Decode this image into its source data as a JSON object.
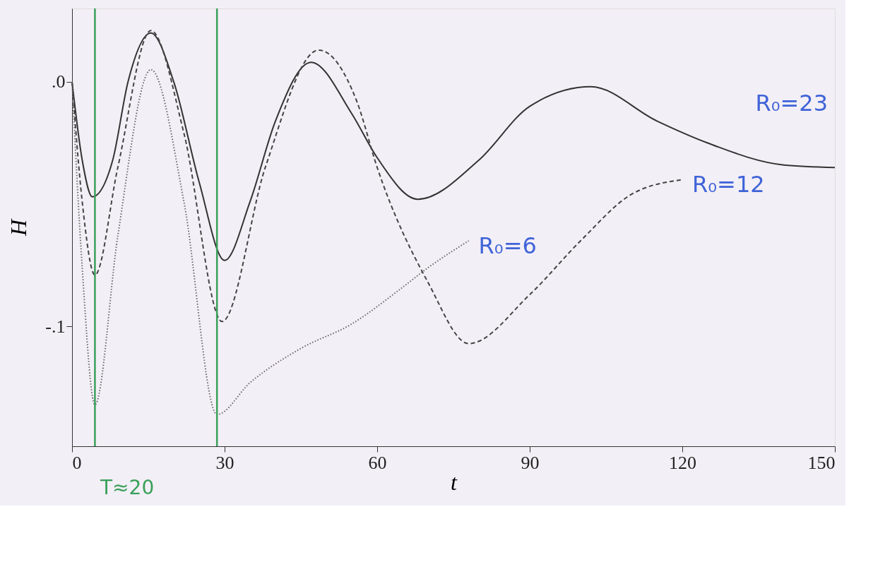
{
  "chart_data": {
    "type": "line",
    "xlabel": "t",
    "ylabel": "H",
    "xlim": [
      0,
      150
    ],
    "ylim": [
      -0.149,
      0.03
    ],
    "xticks": [
      0,
      30,
      60,
      90,
      120,
      150
    ],
    "yticks": [
      {
        "value": 0,
        "label": ".0"
      },
      {
        "value": -0.1,
        "label": "-.1"
      }
    ],
    "grid": false,
    "marker": "none",
    "series": [
      {
        "name": "R₀=23",
        "color": "#333333",
        "line_style": "solid",
        "x": [
          0,
          2,
          4,
          8,
          11,
          15.5,
          20,
          25,
          30,
          35,
          40,
          47,
          55,
          60,
          68,
          80,
          90,
          102,
          115,
          125,
          140,
          150
        ],
        "values": [
          0,
          -0.032,
          -0.047,
          -0.032,
          0.0,
          0.02,
          0.0,
          -0.041,
          -0.073,
          -0.049,
          -0.016,
          0.008,
          -0.013,
          -0.031,
          -0.048,
          -0.032,
          -0.01,
          -0.002,
          -0.016,
          -0.025,
          -0.034,
          -0.035
        ]
      },
      {
        "name": "R₀=12",
        "color": "#444444",
        "line_style": "dashed",
        "x": [
          0,
          2,
          4.5,
          9,
          15.5,
          22,
          29.5,
          38,
          48.5,
          56,
          60,
          70,
          78,
          90,
          100,
          110,
          120
        ],
        "values": [
          0,
          -0.049,
          -0.079,
          -0.035,
          0.021,
          -0.021,
          -0.098,
          -0.035,
          0.013,
          -0.008,
          -0.035,
          -0.082,
          -0.107,
          -0.087,
          -0.065,
          -0.046,
          -0.04
        ]
      },
      {
        "name": "R₀=6",
        "color": "#666666",
        "line_style": "dotted",
        "x": [
          0,
          2,
          4.5,
          9,
          15.5,
          22,
          28.5,
          35,
          45,
          55,
          65,
          70,
          78
        ],
        "values": [
          0,
          -0.076,
          -0.132,
          -0.063,
          0.005,
          -0.049,
          -0.136,
          -0.123,
          -0.109,
          -0.099,
          -0.084,
          -0.076,
          -0.065
        ]
      }
    ],
    "ref_lines": [
      {
        "axis": "x",
        "value": 4.5,
        "color": "#3aa05a"
      },
      {
        "axis": "x",
        "value": 28.5,
        "color": "#3aa05a"
      }
    ],
    "annotations": [
      "T≈20"
    ]
  }
}
